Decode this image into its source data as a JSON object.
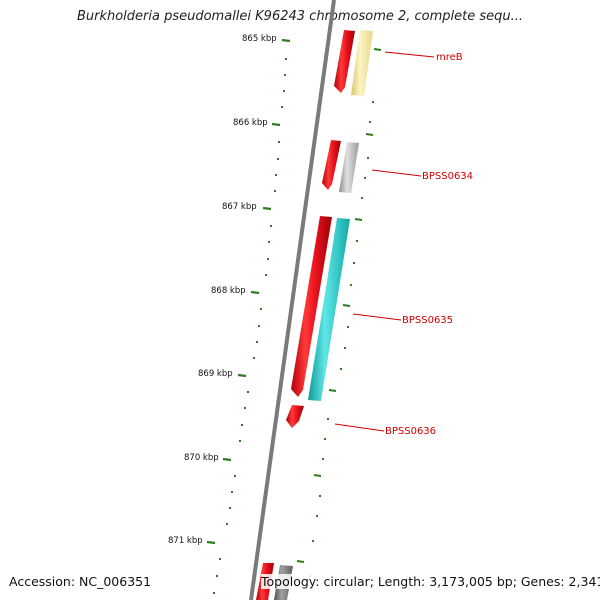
{
  "title": "Burkholderia pseudomallei K96243 chromosome 2, complete sequ...",
  "footer": {
    "accession": "Accession: NC_006351",
    "summary": "Topology: circular; Length: 3,173,005 bp; Genes: 2,341"
  },
  "ruler": {
    "unit": "kbp",
    "ticks": [
      {
        "label": "865 kbp"
      },
      {
        "label": "866 kbp"
      },
      {
        "label": "867 kbp"
      },
      {
        "label": "868 kbp"
      },
      {
        "label": "869 kbp"
      },
      {
        "label": "870 kbp"
      },
      {
        "label": "871 kbp"
      }
    ]
  },
  "gene_labels": [
    {
      "name": "mreB"
    },
    {
      "name": "BPSS0634"
    },
    {
      "name": "BPSS0635"
    },
    {
      "name": "BPSS0636"
    }
  ],
  "colors": {
    "backbone": "#7a7a7a",
    "ruler_tick": "#2e7d1e",
    "gene_cds": "#e8121e",
    "label_text": "#cc0000",
    "feature_yellow": "#f2e6a0",
    "feature_gray": "#b8b8b8",
    "feature_cyan": "#21c4c4"
  }
}
